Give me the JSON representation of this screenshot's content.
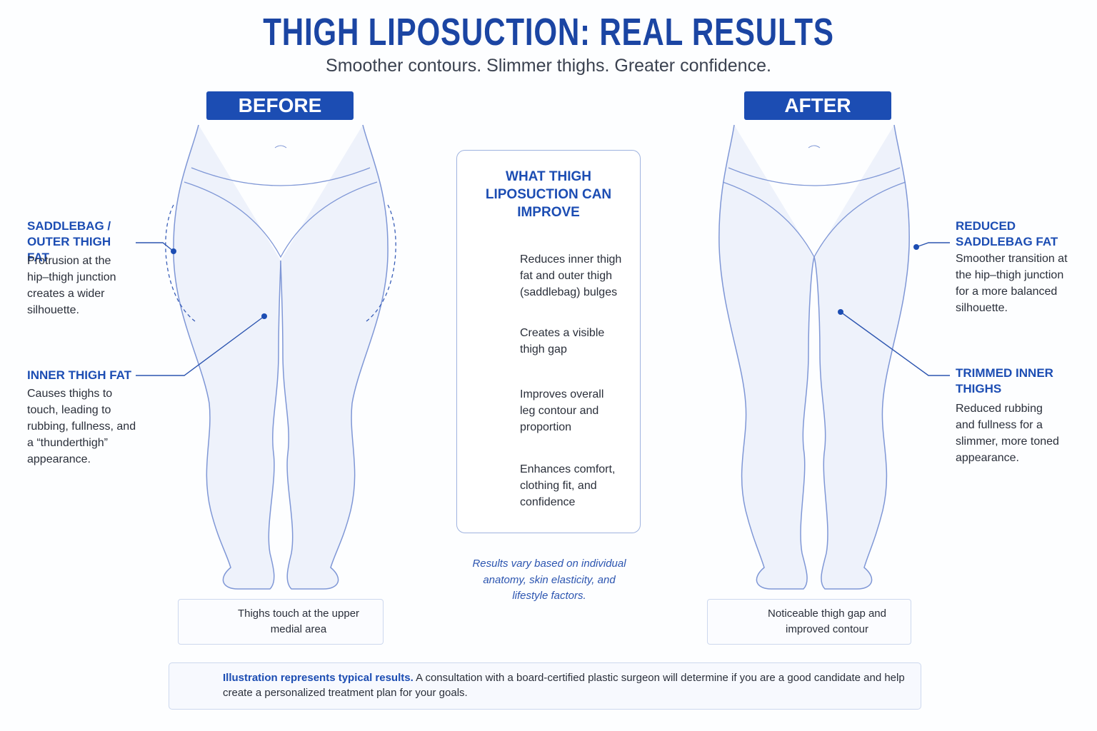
{
  "header": {
    "title": "THIGH LIPOSUCTION: REAL RESULTS",
    "subtitle": "Smoother contours. Slimmer thighs. Greater confidence."
  },
  "before": {
    "label": "BEFORE",
    "callouts": [
      {
        "title": "SADDLEBAG / OUTER THIGH FAT",
        "text": "Protrusion at the hip–thigh junction creates a wider silhouette."
      },
      {
        "title": "INNER THIGH FAT",
        "text": "Causes thighs to touch, leading to rubbing, fullness, and a “thunderthigh” appearance."
      }
    ],
    "status": "Thighs touch at the upper medial area"
  },
  "after": {
    "label": "AFTER",
    "callouts": [
      {
        "title": "REDUCED SADDLEBAG FAT",
        "text": "Smoother transition at the hip–thigh junction for a more balanced silhouette."
      },
      {
        "title": "TRIMMED INNER THIGHS",
        "text": "Reduced rubbing and fullness for a slimmer, more toned appearance."
      }
    ],
    "status": "Noticeable thigh gap and improved contour"
  },
  "panel": {
    "title": "WHAT THIGH LIPOSUCTION CAN IMPROVE",
    "items": [
      "Reduces inner thigh fat and outer thigh (saddlebag) bulges",
      "Creates a visible thigh gap",
      "Improves overall leg contour and proportion",
      "Enhances comfort, clothing fit, and confidence"
    ],
    "note": "Results vary based on individual anatomy, skin elasticity, and lifestyle factors."
  },
  "footer": {
    "emphasis": "Illustration represents typical results.",
    "text": "A consultation with a board-certified plastic surgeon will determine if you are a good candidate and help create a personalized treatment plan for your goals."
  }
}
